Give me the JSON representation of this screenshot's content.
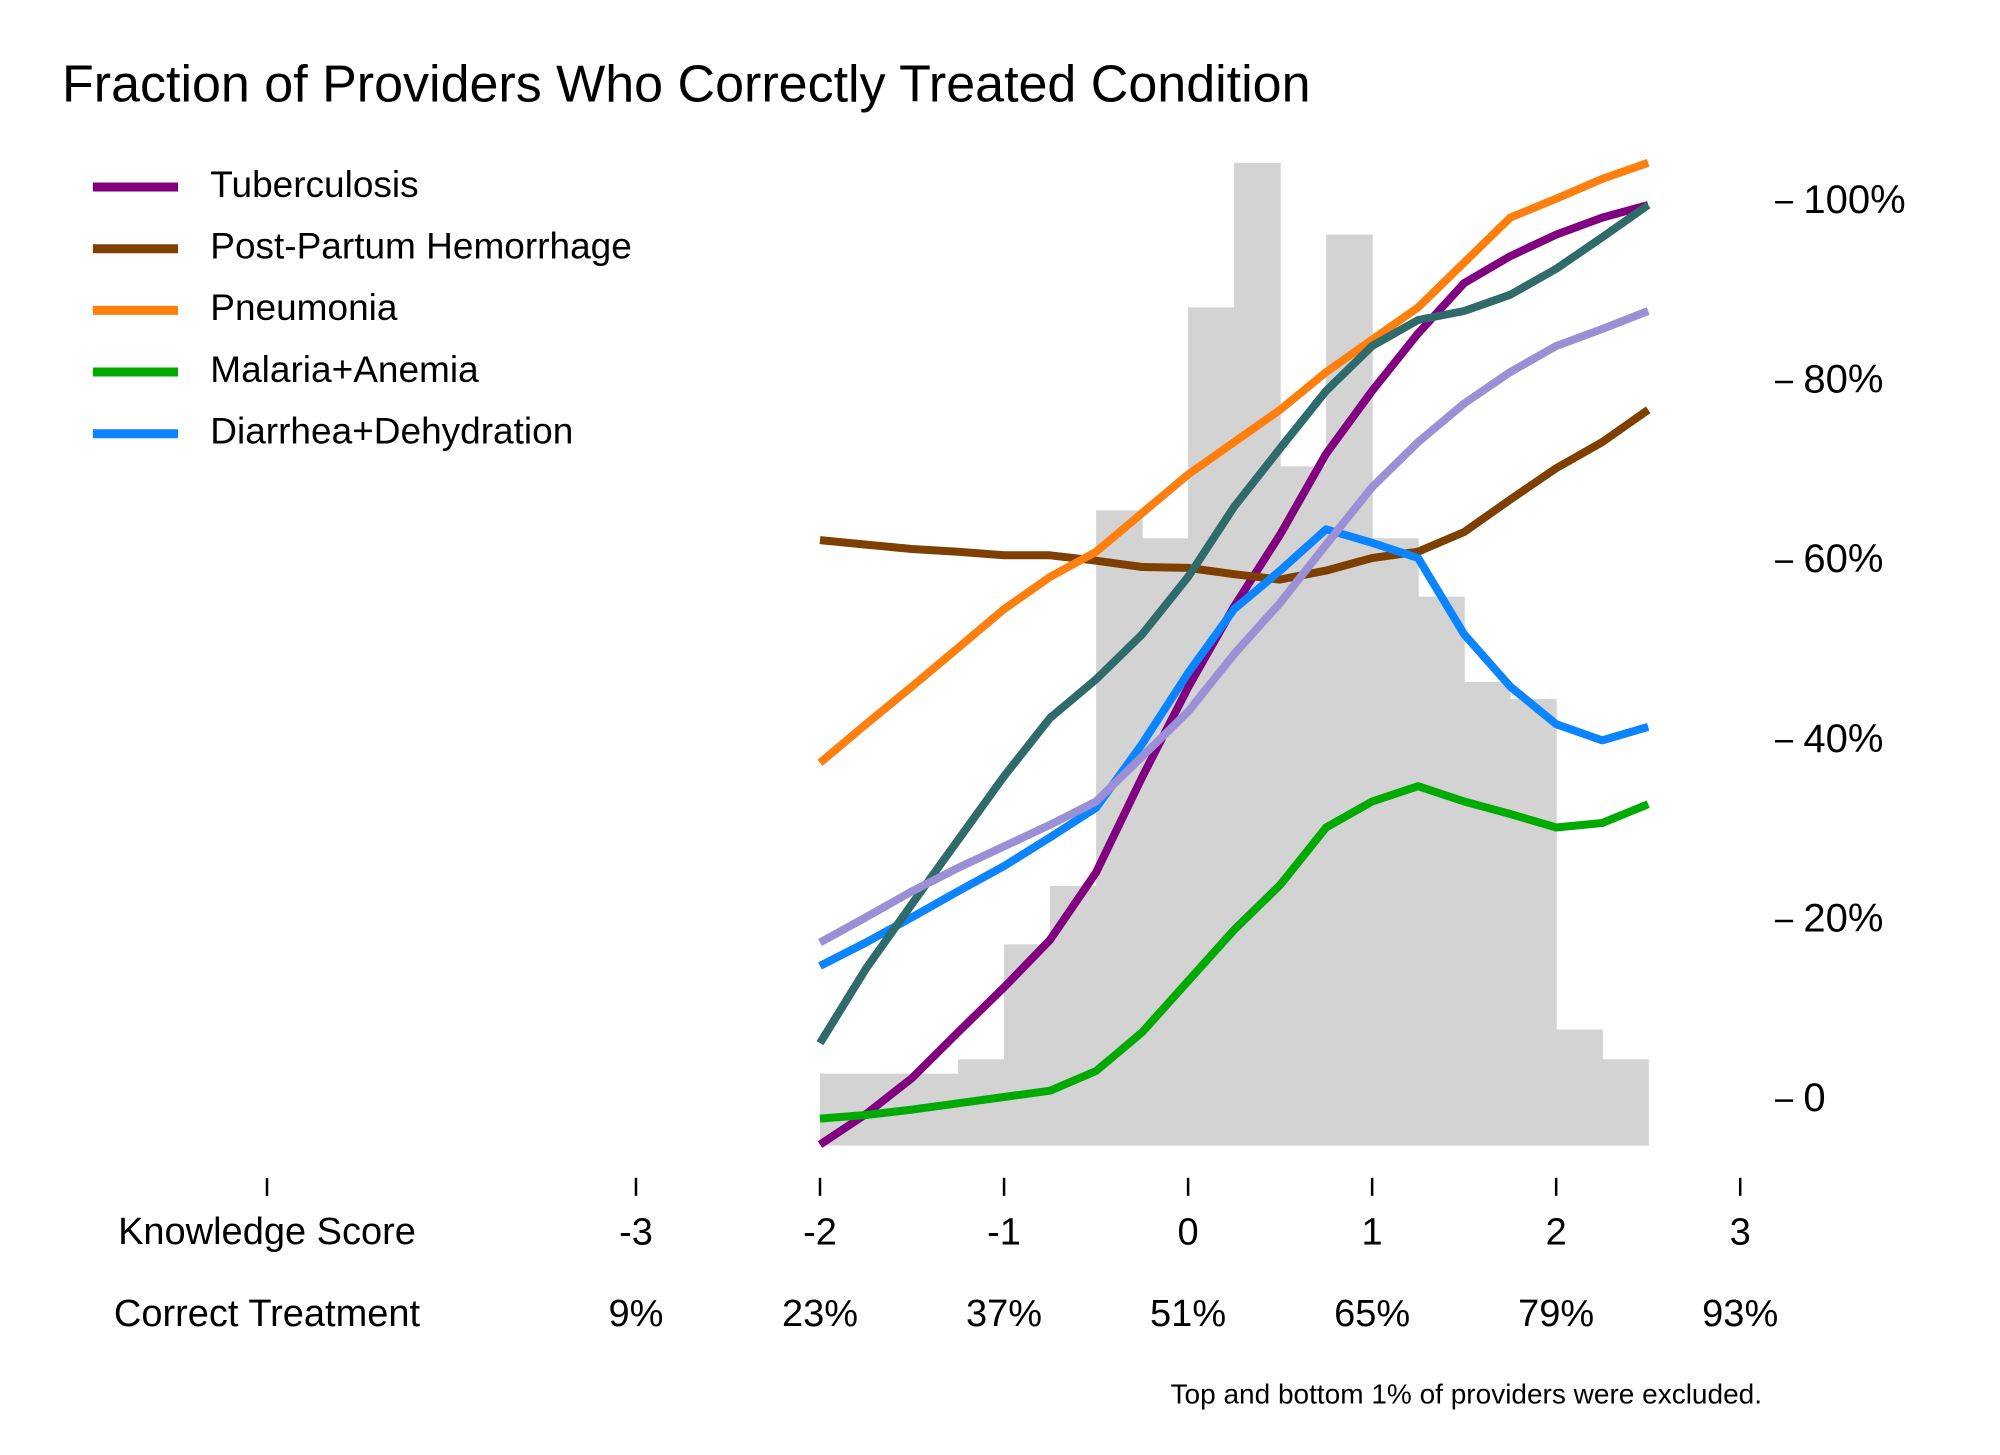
{
  "chart_data": {
    "type": "line",
    "title": "Fraction of Providers Who Correctly Treated Condition",
    "xlabel": "Knowledge Score",
    "x2label": "Correct Treatment",
    "note": "Top and bottom 1% of providers were excluded.",
    "xlim": [
      -3,
      3
    ],
    "xticks": [
      -3,
      -2,
      -1,
      0,
      1,
      2,
      3
    ],
    "x2ticks": [
      {
        "value": -3,
        "label": "9%"
      },
      {
        "value": -2,
        "label": "23%"
      },
      {
        "value": -1,
        "label": "37%"
      },
      {
        "value": 0,
        "label": "51%"
      },
      {
        "value": 1,
        "label": "65%"
      },
      {
        "value": 2,
        "label": "79%"
      },
      {
        "value": 3,
        "label": "93%"
      }
    ],
    "ylim": [
      -5,
      105
    ],
    "yticks": [
      0,
      {
        "value": 20,
        "label": "20%"
      },
      {
        "value": 40,
        "label": "40%"
      },
      {
        "value": 60,
        "label": "60%"
      },
      {
        "value": 80,
        "label": "80%"
      },
      {
        "value": 100,
        "label": "100%"
      }
    ],
    "legend": "upper left",
    "histogram": {
      "color": "#d3d3d3",
      "bins": [
        -2,
        -1.75,
        -1.5,
        -1.25,
        -1,
        -0.75,
        -0.5,
        -0.25,
        0,
        0.25,
        0.5,
        0.75,
        1,
        1.25,
        1.5,
        1.75,
        2,
        2.25,
        2.5
      ],
      "values": [
        3,
        3,
        3,
        4.6,
        17.4,
        23.9,
        65.7,
        62.6,
        88.3,
        104.4,
        70.6,
        96.4,
        62.6,
        56.1,
        46.6,
        44.7,
        7.9,
        4.6
      ]
    },
    "x": [
      -2,
      -1.75,
      -1.5,
      -1.25,
      -1,
      -0.75,
      -0.5,
      -0.25,
      0,
      0.25,
      0.5,
      0.75,
      1,
      1.25,
      1.5,
      1.75,
      2,
      2.25,
      2.5
    ],
    "series": [
      {
        "name": "Tuberculosis",
        "color": "#800080",
        "values": [
          -4.9,
          -1.5,
          2.5,
          7.6,
          12.6,
          17.9,
          25.4,
          36,
          46,
          55,
          63,
          72,
          79,
          85.4,
          91,
          94,
          96.4,
          98.3,
          99.7
        ]
      },
      {
        "name": "Post-Partum Hemorrhage",
        "color": "#7f3f00",
        "values": [
          62.4,
          61.9,
          61.4,
          61.1,
          60.7,
          60.7,
          60.1,
          59.4,
          59.3,
          58.6,
          58,
          59,
          60.4,
          61.1,
          63.3,
          66.9,
          70.4,
          73.3,
          76.9
        ]
      },
      {
        "name": "Pneumonia",
        "color": "#ff7f0e",
        "values": [
          37.6,
          41.9,
          46.1,
          50.4,
          54.7,
          58.3,
          61.1,
          65.4,
          69.7,
          73.3,
          76.9,
          81.1,
          84.7,
          88.3,
          93.3,
          98.3,
          100.4,
          102.6,
          104.4
        ]
      },
      {
        "name": "Malaria+Anemia",
        "color": "#00aa00",
        "values": [
          -2,
          -1.6,
          -1,
          -0.3,
          0.4,
          1.1,
          3.3,
          7.6,
          13.3,
          19,
          24,
          30.4,
          33.3,
          35,
          33.3,
          31.9,
          30.4,
          30.9,
          33
        ]
      },
      {
        "name": "Diarrhea+Dehydration",
        "color": "#0a84ff",
        "values": [
          15,
          17.6,
          20.4,
          23.3,
          26.1,
          29.3,
          32.6,
          39.7,
          47.6,
          54.7,
          59,
          63.6,
          62.1,
          60.4,
          51.9,
          46.1,
          41.9,
          40.1,
          41.6
        ]
      },
      {
        "color": "#2f6b6b",
        "values": [
          6.4,
          14.7,
          21.9,
          29,
          36.1,
          42.6,
          46.9,
          51.9,
          58.3,
          66.1,
          72.6,
          79,
          84,
          86.9,
          87.9,
          89.7,
          92.6,
          96.1,
          99.7
        ]
      },
      {
        "color": "#9b8fd6",
        "values": [
          17.6,
          20.4,
          23.3,
          25.9,
          28.3,
          30.7,
          33.3,
          38.3,
          43.3,
          49.7,
          55.4,
          61.9,
          68.3,
          73.3,
          77.6,
          81.1,
          84,
          85.9,
          87.9
        ]
      }
    ]
  }
}
